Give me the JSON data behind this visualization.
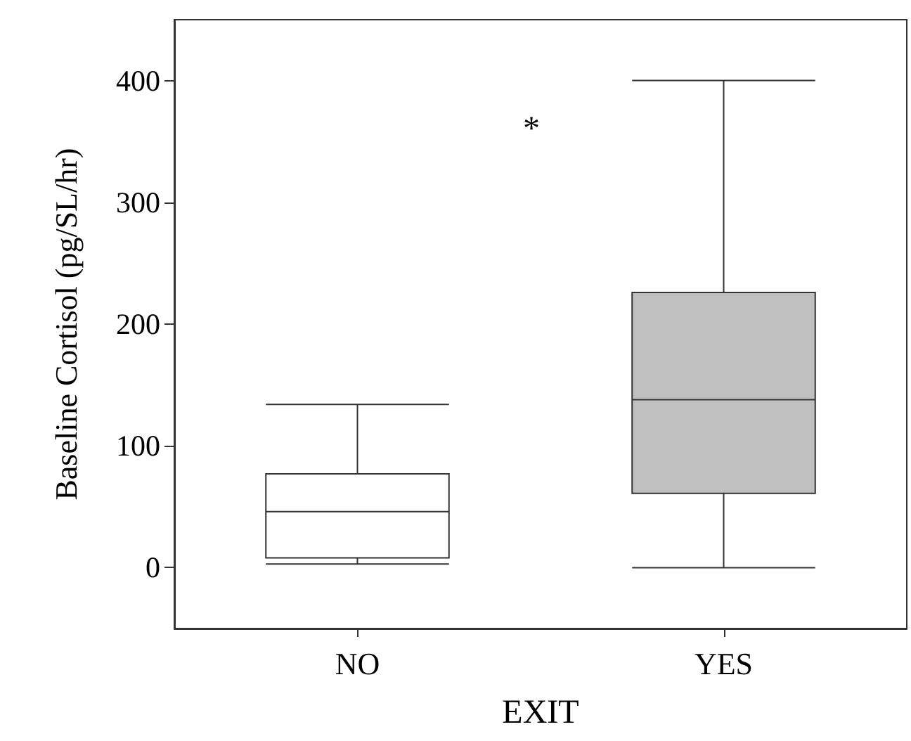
{
  "chart_data": {
    "type": "box",
    "xlabel": "EXIT",
    "ylabel": "Baseline Cortisol (pg/SL/hr)",
    "categories": [
      "NO",
      "YES"
    ],
    "boxes": [
      {
        "low": 3,
        "q1": 8,
        "median": 46,
        "q3": 77,
        "high": 134
      },
      {
        "low": 0,
        "q1": 61,
        "median": 138,
        "q3": 226,
        "high": 400
      }
    ],
    "colors": [
      "#ffffff",
      "#c0c0c0"
    ],
    "ylim": [
      -50,
      450
    ],
    "yticks": [
      0,
      100,
      200,
      300,
      400
    ],
    "grid": false,
    "annotations": [
      "*"
    ]
  }
}
